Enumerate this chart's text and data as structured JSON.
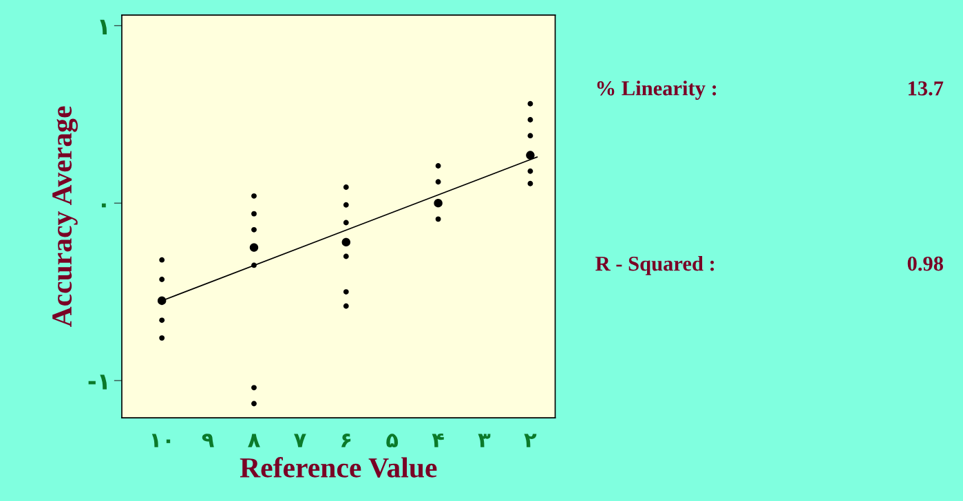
{
  "chart_data": {
    "type": "bubble",
    "xlabel": "Reference Value",
    "ylabel": "Accuracy Average",
    "xlim": [
      10.87,
      1.46
    ],
    "ylim": [
      -1.21,
      1.06
    ],
    "xticks": [
      {
        "value": 10,
        "label": "۱۰"
      },
      {
        "value": 9,
        "label": "۹"
      },
      {
        "value": 8,
        "label": "۸"
      },
      {
        "value": 7,
        "label": "۷"
      },
      {
        "value": 6,
        "label": "۶"
      },
      {
        "value": 5,
        "label": "۵"
      },
      {
        "value": 4,
        "label": "۴"
      },
      {
        "value": 3,
        "label": "۳"
      },
      {
        "value": 2,
        "label": "۲"
      }
    ],
    "yticks": [
      {
        "value": -1,
        "label": "-۱"
      },
      {
        "value": 0,
        "label": "۰"
      },
      {
        "value": 1,
        "label": "۱"
      }
    ],
    "grid": false,
    "legend": false,
    "series": [
      {
        "color": "#000000",
        "x": [
          10,
          10,
          10,
          10,
          10,
          8,
          8,
          8,
          8,
          8,
          8,
          8,
          6,
          6,
          6,
          6,
          6,
          6,
          6,
          4,
          4,
          4,
          4,
          2,
          2,
          2,
          2,
          2,
          2
        ],
        "values": [
          -0.32,
          -0.43,
          -0.55,
          -0.66,
          -0.76,
          0.04,
          -0.06,
          -0.15,
          -0.25,
          -0.35,
          -1.04,
          -1.13,
          0.09,
          -0.01,
          -0.11,
          -0.22,
          -0.3,
          -0.5,
          -0.58,
          0.21,
          0.12,
          0.0,
          -0.09,
          0.56,
          0.47,
          0.38,
          0.27,
          0.18,
          0.11
        ],
        "sizes": [
          0.4,
          0.4,
          1,
          0.4,
          0.4,
          0.4,
          0.4,
          0.4,
          1,
          0.4,
          0.4,
          0.4,
          0.4,
          0.4,
          0.4,
          1,
          0.4,
          0.4,
          0.4,
          0.4,
          0.4,
          1,
          0.4,
          0.4,
          0.4,
          0.4,
          1,
          0.4,
          0.4
        ]
      },
      {
        "type": "line",
        "color": "#000000",
        "x": [
          10,
          1.85
        ],
        "values": [
          -0.55,
          0.26
        ]
      }
    ],
    "annotations": [
      "% Linearity :",
      "13.7",
      "R - Squared :",
      "0.98"
    ]
  }
}
